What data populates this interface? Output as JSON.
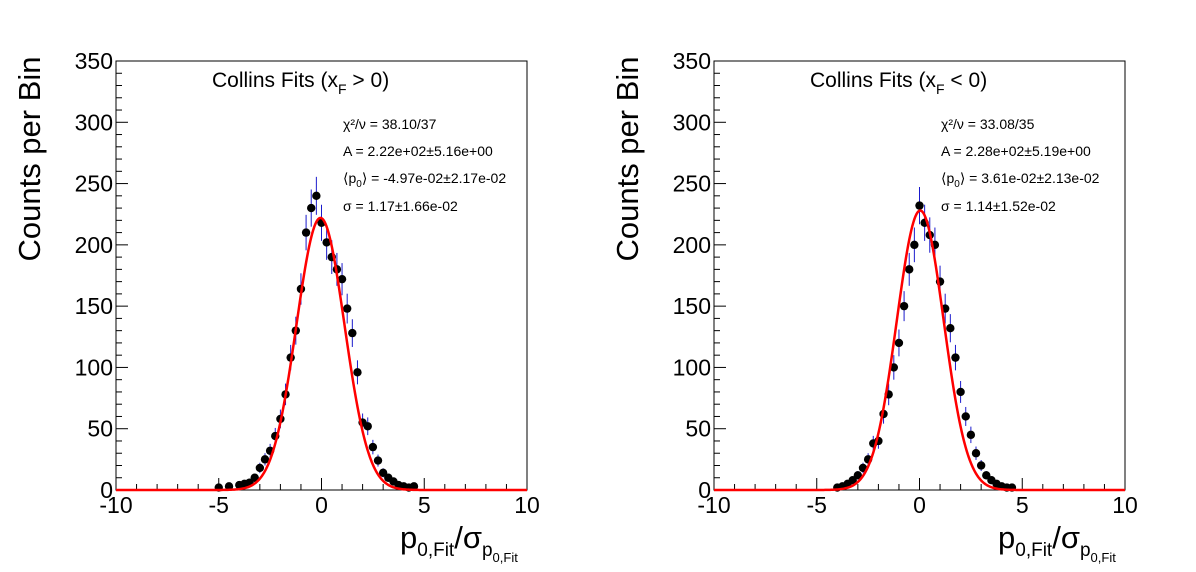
{
  "chart_data": [
    {
      "type": "scatter",
      "title": "Collins Fits (x",
      "title_sub": "F",
      "title_suffix": " > 0)",
      "ylabel": "Counts per Bin",
      "xlabel_main": "p",
      "xlabel_sub": "0,Fit",
      "xlabel_slash": "/σ",
      "xlabel_sigma_sub": "p",
      "xlabel_sigma_subsub": "0,Fit",
      "xlim": [
        -10,
        10
      ],
      "ylim": [
        0,
        350
      ],
      "xticks": [
        "-10",
        "-5",
        "0",
        "5",
        "10"
      ],
      "yticks": [
        "0",
        "50",
        "100",
        "150",
        "200",
        "250",
        "300",
        "350"
      ],
      "grid": false,
      "stats": {
        "chi2": "χ²/ν = 38.10/37",
        "amp": "A = 2.22e+02±5.16e+00",
        "mean_pre": "⟨p",
        "mean_sub": "0",
        "mean_post": "⟩ = -4.97e-02±2.17e-02",
        "sigma": "σ = 1.17±1.66e-02"
      },
      "fit": {
        "A": 222,
        "mu": -0.0497,
        "sigma": 1.17,
        "color": "#ff0000"
      },
      "x": [
        -5.0,
        -4.5,
        -4.0,
        -3.75,
        -3.5,
        -3.25,
        -3.0,
        -2.75,
        -2.5,
        -2.25,
        -2.0,
        -1.75,
        -1.5,
        -1.25,
        -1.0,
        -0.75,
        -0.5,
        -0.25,
        0.0,
        0.25,
        0.5,
        0.75,
        1.0,
        1.25,
        1.5,
        1.75,
        2.0,
        2.25,
        2.5,
        2.75,
        3.0,
        3.25,
        3.5,
        3.75,
        4.0,
        4.25,
        4.5
      ],
      "y": [
        2,
        3,
        4,
        5,
        6,
        10,
        18,
        25,
        32,
        44,
        58,
        78,
        108,
        130,
        164,
        210,
        230,
        240,
        218,
        202,
        190,
        180,
        172,
        148,
        128,
        96,
        55,
        52,
        35,
        24,
        14,
        10,
        7,
        4,
        3,
        2,
        3
      ]
    },
    {
      "type": "scatter",
      "title": "Collins Fits (x",
      "title_sub": "F",
      "title_suffix": " < 0)",
      "ylabel": "Counts per Bin",
      "xlabel_main": "p",
      "xlabel_sub": "0,Fit",
      "xlabel_slash": "/σ",
      "xlabel_sigma_sub": "p",
      "xlabel_sigma_subsub": "0,Fit",
      "xlim": [
        -10,
        10
      ],
      "ylim": [
        0,
        350
      ],
      "xticks": [
        "-10",
        "-5",
        "0",
        "5",
        "10"
      ],
      "yticks": [
        "0",
        "50",
        "100",
        "150",
        "200",
        "250",
        "300",
        "350"
      ],
      "grid": false,
      "stats": {
        "chi2": "χ²/ν = 33.08/35",
        "amp": "A = 2.28e+02±5.19e+00",
        "mean_pre": "⟨p",
        "mean_sub": "0",
        "mean_post": "⟩ = 3.61e-02±2.13e-02",
        "sigma": "σ = 1.14±1.52e-02"
      },
      "fit": {
        "A": 228,
        "mu": 0.0361,
        "sigma": 1.14,
        "color": "#ff0000"
      },
      "x": [
        -4.0,
        -3.75,
        -3.5,
        -3.25,
        -3.0,
        -2.75,
        -2.5,
        -2.25,
        -2.0,
        -1.75,
        -1.5,
        -1.25,
        -1.0,
        -0.75,
        -0.5,
        -0.25,
        0.0,
        0.25,
        0.5,
        0.75,
        1.0,
        1.25,
        1.5,
        1.75,
        2.0,
        2.25,
        2.5,
        2.75,
        3.0,
        3.25,
        3.5,
        3.75,
        4.0,
        4.25,
        4.5
      ],
      "y": [
        2,
        3,
        5,
        8,
        12,
        18,
        25,
        38,
        40,
        62,
        78,
        100,
        120,
        150,
        180,
        200,
        232,
        218,
        208,
        200,
        170,
        148,
        132,
        108,
        80,
        60,
        45,
        30,
        20,
        12,
        8,
        5,
        3,
        2,
        2
      ]
    }
  ]
}
